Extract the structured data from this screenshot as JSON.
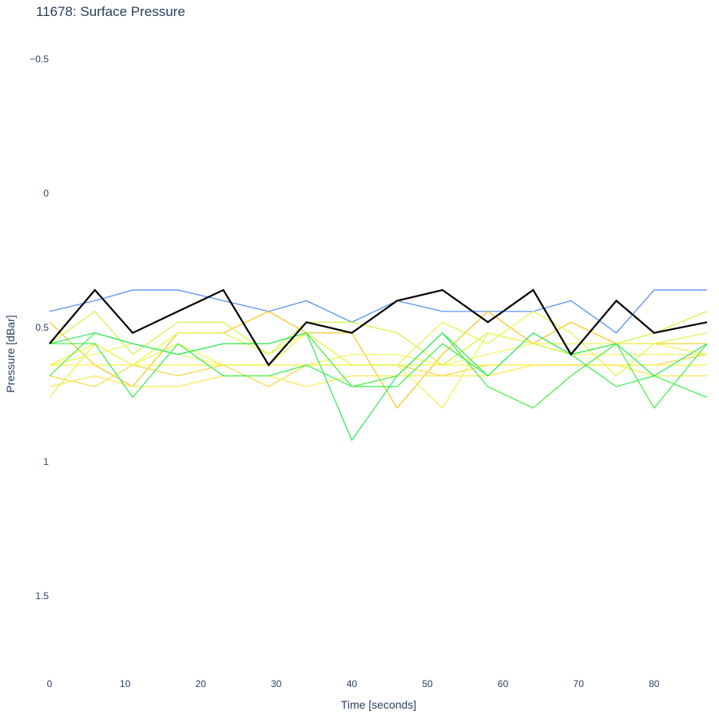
{
  "chart_data": {
    "type": "line",
    "title": "11678: Surface Pressure",
    "xlabel": "Time [seconds]",
    "ylabel": "Pressure [dBar]",
    "y_reversed": true,
    "grid": false,
    "legend": "none",
    "xlim": [
      0,
      87
    ],
    "ylim": [
      -0.5,
      1.5
    ],
    "x_ticks": [
      "0",
      "10",
      "20",
      "30",
      "40",
      "50",
      "60",
      "70",
      "80"
    ],
    "y_ticks": [
      "−0.5",
      "0",
      "0.5",
      "1",
      "1.5"
    ],
    "x_tick_values": [
      0,
      10,
      20,
      30,
      40,
      50,
      60,
      70,
      80
    ],
    "y_tick_values": [
      -0.5,
      0,
      0.5,
      1,
      1.5
    ],
    "series": [
      {
        "color": "#4c8bf5",
        "width": 1.2,
        "x": [
          0,
          6,
          11,
          17,
          23,
          29,
          34,
          40,
          46,
          52,
          58,
          64,
          69,
          75,
          80,
          87
        ],
        "y": [
          0.44,
          0.4,
          0.36,
          0.36,
          0.4,
          0.44,
          0.4,
          0.48,
          0.4,
          0.44,
          0.44,
          0.44,
          0.4,
          0.52,
          0.36,
          0.36
        ]
      },
      {
        "color": "#f5c518",
        "width": 1.2,
        "x": [
          0,
          6,
          11,
          17,
          23,
          29,
          34,
          40,
          46,
          52,
          58,
          64,
          69,
          75,
          80,
          87
        ],
        "y": [
          0.48,
          0.64,
          0.72,
          0.52,
          0.52,
          0.44,
          0.52,
          0.52,
          0.8,
          0.6,
          0.44,
          0.56,
          0.48,
          0.56,
          0.56,
          0.56
        ]
      },
      {
        "color": "#f5d742",
        "width": 1.2,
        "x": [
          0,
          6,
          11,
          17,
          23,
          29,
          34,
          40,
          46,
          52,
          58,
          64,
          69,
          75,
          80,
          87
        ],
        "y": [
          0.68,
          0.72,
          0.64,
          0.68,
          0.64,
          0.72,
          0.64,
          0.64,
          0.64,
          0.68,
          0.64,
          0.64,
          0.64,
          0.64,
          0.64,
          0.6
        ]
      },
      {
        "color": "#fff44a",
        "width": 1.2,
        "x": [
          0,
          6,
          11,
          17,
          23,
          29,
          34,
          40,
          46,
          52,
          58,
          64,
          69,
          75,
          80,
          87
        ],
        "y": [
          0.64,
          0.64,
          0.64,
          0.64,
          0.64,
          0.64,
          0.64,
          0.64,
          0.64,
          0.64,
          0.64,
          0.64,
          0.64,
          0.64,
          0.64,
          0.64
        ]
      },
      {
        "color": "#ffe84a",
        "width": 1.2,
        "x": [
          0,
          6,
          11,
          17,
          23,
          29,
          34,
          40,
          46,
          52,
          58,
          64,
          69,
          75,
          80,
          87
        ],
        "y": [
          0.72,
          0.68,
          0.72,
          0.72,
          0.68,
          0.68,
          0.72,
          0.68,
          0.68,
          0.68,
          0.68,
          0.64,
          0.64,
          0.64,
          0.68,
          0.68
        ]
      },
      {
        "color": "#f3f55a",
        "width": 1.2,
        "x": [
          0,
          6,
          11,
          17,
          23,
          29,
          34,
          40,
          46,
          52,
          58,
          64,
          69,
          75,
          80,
          87
        ],
        "y": [
          0.64,
          0.6,
          0.56,
          0.6,
          0.64,
          0.64,
          0.64,
          0.6,
          0.6,
          0.64,
          0.6,
          0.56,
          0.6,
          0.6,
          0.6,
          0.6
        ]
      },
      {
        "color": "#ccf53a",
        "width": 1.2,
        "x": [
          0,
          6,
          11,
          17,
          23,
          29,
          34,
          40,
          46,
          52,
          58,
          64,
          69,
          75,
          80,
          87
        ],
        "y": [
          0.56,
          0.44,
          0.6,
          0.48,
          0.48,
          0.6,
          0.48,
          0.48,
          0.52,
          0.64,
          0.52,
          0.56,
          0.6,
          0.56,
          0.52,
          0.44
        ]
      },
      {
        "color": "#e2f545",
        "width": 1.2,
        "x": [
          0,
          6,
          11,
          17,
          23,
          29,
          34,
          40,
          46,
          52,
          58,
          64,
          69,
          75,
          80,
          87
        ],
        "y": [
          0.76,
          0.56,
          0.64,
          0.52,
          0.52,
          0.6,
          0.52,
          0.64,
          0.64,
          0.48,
          0.56,
          0.44,
          0.52,
          0.68,
          0.56,
          0.52
        ]
      },
      {
        "color": "#eaf54a",
        "width": 1.2,
        "x": [
          0,
          6,
          11,
          17,
          23,
          29,
          34,
          40,
          46,
          52,
          58,
          64,
          69,
          75,
          80,
          87
        ],
        "y": [
          0.64,
          0.56,
          0.64,
          0.56,
          0.64,
          0.64,
          0.52,
          0.64,
          0.64,
          0.8,
          0.52,
          0.56,
          0.56,
          0.56,
          0.56,
          0.6
        ]
      },
      {
        "color": "#35f04a",
        "width": 1.2,
        "x": [
          0,
          6,
          11,
          17,
          23,
          29,
          34,
          40,
          46,
          52,
          58,
          64,
          69,
          75,
          80,
          87
        ],
        "y": [
          0.56,
          0.56,
          0.76,
          0.56,
          0.68,
          0.68,
          0.64,
          0.72,
          0.72,
          0.56,
          0.68,
          0.52,
          0.6,
          0.72,
          0.68,
          0.76
        ]
      },
      {
        "color": "#3ff03a",
        "width": 1.2,
        "x": [
          0,
          6,
          11,
          17,
          23,
          29,
          34,
          40,
          46,
          52,
          58,
          64,
          69,
          75,
          80,
          87
        ],
        "y": [
          0.68,
          0.52,
          0.56,
          0.6,
          0.56,
          0.56,
          0.52,
          0.72,
          0.68,
          0.52,
          0.72,
          0.8,
          0.68,
          0.56,
          0.8,
          0.56
        ]
      },
      {
        "color": "#2ee85a",
        "width": 1.2,
        "x": [
          0,
          6,
          11,
          17,
          23,
          29,
          34,
          40,
          46,
          52,
          58,
          64,
          69,
          75,
          80,
          87
        ],
        "y": [
          0.56,
          0.52,
          0.56,
          0.6,
          0.56,
          0.56,
          0.52,
          0.92,
          0.68,
          0.52,
          0.68,
          0.52,
          0.6,
          0.56,
          0.68,
          0.56
        ]
      },
      {
        "color": "#000000",
        "width": 2.2,
        "x": [
          0,
          6,
          11,
          17,
          23,
          29,
          34,
          40,
          46,
          52,
          58,
          64,
          69,
          75,
          80,
          87
        ],
        "y": [
          0.56,
          0.36,
          0.52,
          0.44,
          0.36,
          0.64,
          0.48,
          0.52,
          0.4,
          0.36,
          0.48,
          0.36,
          0.6,
          0.4,
          0.52,
          0.48
        ]
      }
    ]
  }
}
